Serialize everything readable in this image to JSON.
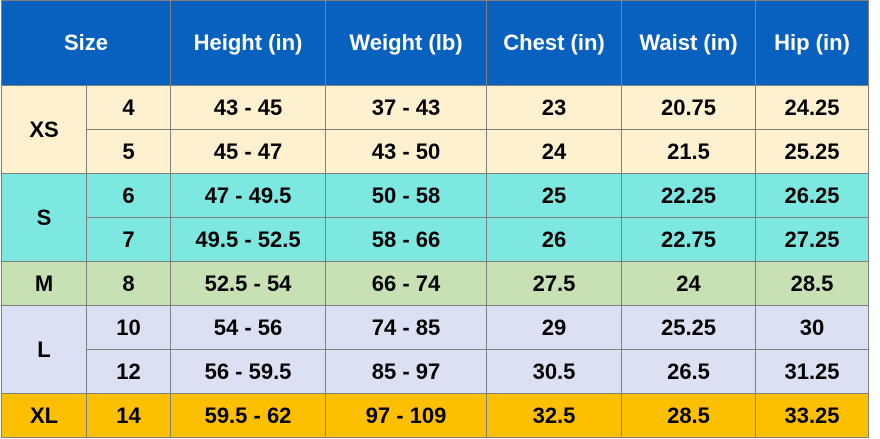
{
  "headers": {
    "size": "Size",
    "height": "Height (in)",
    "weight": "Weight (lb)",
    "chest": "Chest (in)",
    "waist": "Waist (in)",
    "hip": "Hip (in)"
  },
  "groups": [
    {
      "label": "XS",
      "color": "#fef1cf",
      "rows": [
        {
          "num": "4",
          "height": "43 - 45",
          "weight": "37 - 43",
          "chest": "23",
          "waist": "20.75",
          "hip": "24.25"
        },
        {
          "num": "5",
          "height": "45 - 47",
          "weight": "43 - 50",
          "chest": "24",
          "waist": "21.5",
          "hip": "25.25"
        }
      ]
    },
    {
      "label": "S",
      "color": "#7de8e0",
      "rows": [
        {
          "num": "6",
          "height": "47 - 49.5",
          "weight": "50 - 58",
          "chest": "25",
          "waist": "22.25",
          "hip": "26.25"
        },
        {
          "num": "7",
          "height": "49.5 - 52.5",
          "weight": "58 - 66",
          "chest": "26",
          "waist": "22.75",
          "hip": "27.25"
        }
      ]
    },
    {
      "label": "M",
      "color": "#c7e0b4",
      "rows": [
        {
          "num": "8",
          "height": "52.5 - 54",
          "weight": "66 - 74",
          "chest": "27.5",
          "waist": "24",
          "hip": "28.5"
        }
      ]
    },
    {
      "label": "L",
      "color": "#dbe1f2",
      "rows": [
        {
          "num": "10",
          "height": "54 - 56",
          "weight": "74 - 85",
          "chest": "29",
          "waist": "25.25",
          "hip": "30"
        },
        {
          "num": "12",
          "height": "56 - 59.5",
          "weight": "85 - 97",
          "chest": "30.5",
          "waist": "26.5",
          "hip": "31.25"
        }
      ]
    },
    {
      "label": "XL",
      "color": "#fdc000",
      "rows": [
        {
          "num": "14",
          "height": "59.5 - 62",
          "weight": "97 - 109",
          "chest": "32.5",
          "waist": "28.5",
          "hip": "33.25"
        }
      ]
    }
  ],
  "colors": {
    "header_bg": "#0860bf",
    "header_text": "#ffffff",
    "border": "#7f7f7f"
  }
}
